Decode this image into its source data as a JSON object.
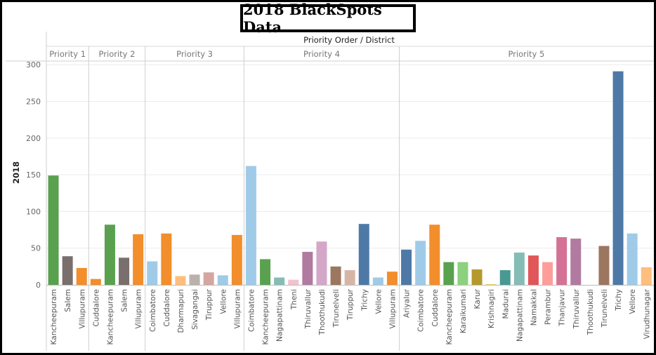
{
  "chart_data": {
    "type": "bar",
    "title": "2018 BlackSpots Data",
    "header": "Priority Order / District",
    "ylabel": "2018",
    "ylim": [
      0,
      305
    ],
    "yticks": [
      0,
      50,
      100,
      150,
      200,
      250,
      300
    ],
    "grid": true,
    "groups": [
      {
        "name": "Priority 1",
        "bars": [
          {
            "label": "Kancheepuram",
            "value": 149,
            "color": "#59a14f"
          },
          {
            "label": "Salem",
            "value": 39,
            "color": "#79706e"
          },
          {
            "label": "Villupuram",
            "value": 23,
            "color": "#f28e2b"
          }
        ]
      },
      {
        "name": "Priority 2",
        "bars": [
          {
            "label": "Cuddalore",
            "value": 8,
            "color": "#f28e2b"
          },
          {
            "label": "Kancheepuram",
            "value": 82,
            "color": "#59a14f"
          },
          {
            "label": "Salem",
            "value": 37,
            "color": "#79706e"
          },
          {
            "label": "Villupuram",
            "value": 69,
            "color": "#f28e2b"
          }
        ]
      },
      {
        "name": "Priority 3",
        "bars": [
          {
            "label": "Coimbatore",
            "value": 32,
            "color": "#a0cbe8"
          },
          {
            "label": "Cuddalore",
            "value": 70,
            "color": "#f28e2b"
          },
          {
            "label": "Dharmapuri",
            "value": 12,
            "color": "#ffbe7d"
          },
          {
            "label": "Sivagangai",
            "value": 14,
            "color": "#bab0ac"
          },
          {
            "label": "Tiruppur",
            "value": 17,
            "color": "#d4a6a0"
          },
          {
            "label": "Vellore",
            "value": 13,
            "color": "#a0cbe8"
          },
          {
            "label": "Villupuram",
            "value": 68,
            "color": "#f28e2b"
          }
        ]
      },
      {
        "name": "Priority 4",
        "bars": [
          {
            "label": "Coimbatore",
            "value": 162,
            "color": "#a0cbe8"
          },
          {
            "label": "Kancheepuram",
            "value": 35,
            "color": "#59a14f"
          },
          {
            "label": "Nagapattinam",
            "value": 10,
            "color": "#86bcb6"
          },
          {
            "label": "Theni",
            "value": 7,
            "color": "#f1c2d0"
          },
          {
            "label": "Thiruvallur",
            "value": 45,
            "color": "#b07aa1"
          },
          {
            "label": "Thoothukudi",
            "value": 59,
            "color": "#d4a6c8"
          },
          {
            "label": "Tirunelveli",
            "value": 25,
            "color": "#9d7660"
          },
          {
            "label": "Tiruppur",
            "value": 20,
            "color": "#d7b5a6"
          },
          {
            "label": "Trichy",
            "value": 83,
            "color": "#4e79a7"
          },
          {
            "label": "Vellore",
            "value": 10,
            "color": "#a0cbe8"
          },
          {
            "label": "Villupuram",
            "value": 18,
            "color": "#f28e2b"
          }
        ]
      },
      {
        "name": "Priority 5",
        "bars": [
          {
            "label": "Ariyalur",
            "value": 48,
            "color": "#4e79a7"
          },
          {
            "label": "Coimbatore",
            "value": 60,
            "color": "#a0cbe8"
          },
          {
            "label": "Cuddalore",
            "value": 82,
            "color": "#f28e2b"
          },
          {
            "label": "Kancheepuram",
            "value": 31,
            "color": "#59a14f"
          },
          {
            "label": "Karaikumari",
            "value": 31,
            "color": "#8cd17d"
          },
          {
            "label": "Karur",
            "value": 21,
            "color": "#b6992d"
          },
          {
            "label": "Krishnagiri",
            "value": 1,
            "color": "#f1ce63"
          },
          {
            "label": "Madurai",
            "value": 20,
            "color": "#499894"
          },
          {
            "label": "Nagapattinam",
            "value": 44,
            "color": "#86bcb6"
          },
          {
            "label": "Namakkal",
            "value": 40,
            "color": "#e15759"
          },
          {
            "label": "Perambur",
            "value": 31,
            "color": "#ff9d9a"
          },
          {
            "label": "Thanjavur",
            "value": 65,
            "color": "#d37295"
          },
          {
            "label": "Thiruvallur",
            "value": 63,
            "color": "#b07aa1"
          },
          {
            "label": "Thoothukudi",
            "value": 0,
            "color": "#d4a6c8"
          },
          {
            "label": "Tirunelveli",
            "value": 53,
            "color": "#9d7660"
          },
          {
            "label": "Trichy",
            "value": 291,
            "color": "#4e79a7"
          },
          {
            "label": "Vellore",
            "value": 70,
            "color": "#a0cbe8"
          },
          {
            "label": "Virudhunagar",
            "value": 24,
            "color": "#ffbe7d"
          }
        ]
      }
    ]
  }
}
